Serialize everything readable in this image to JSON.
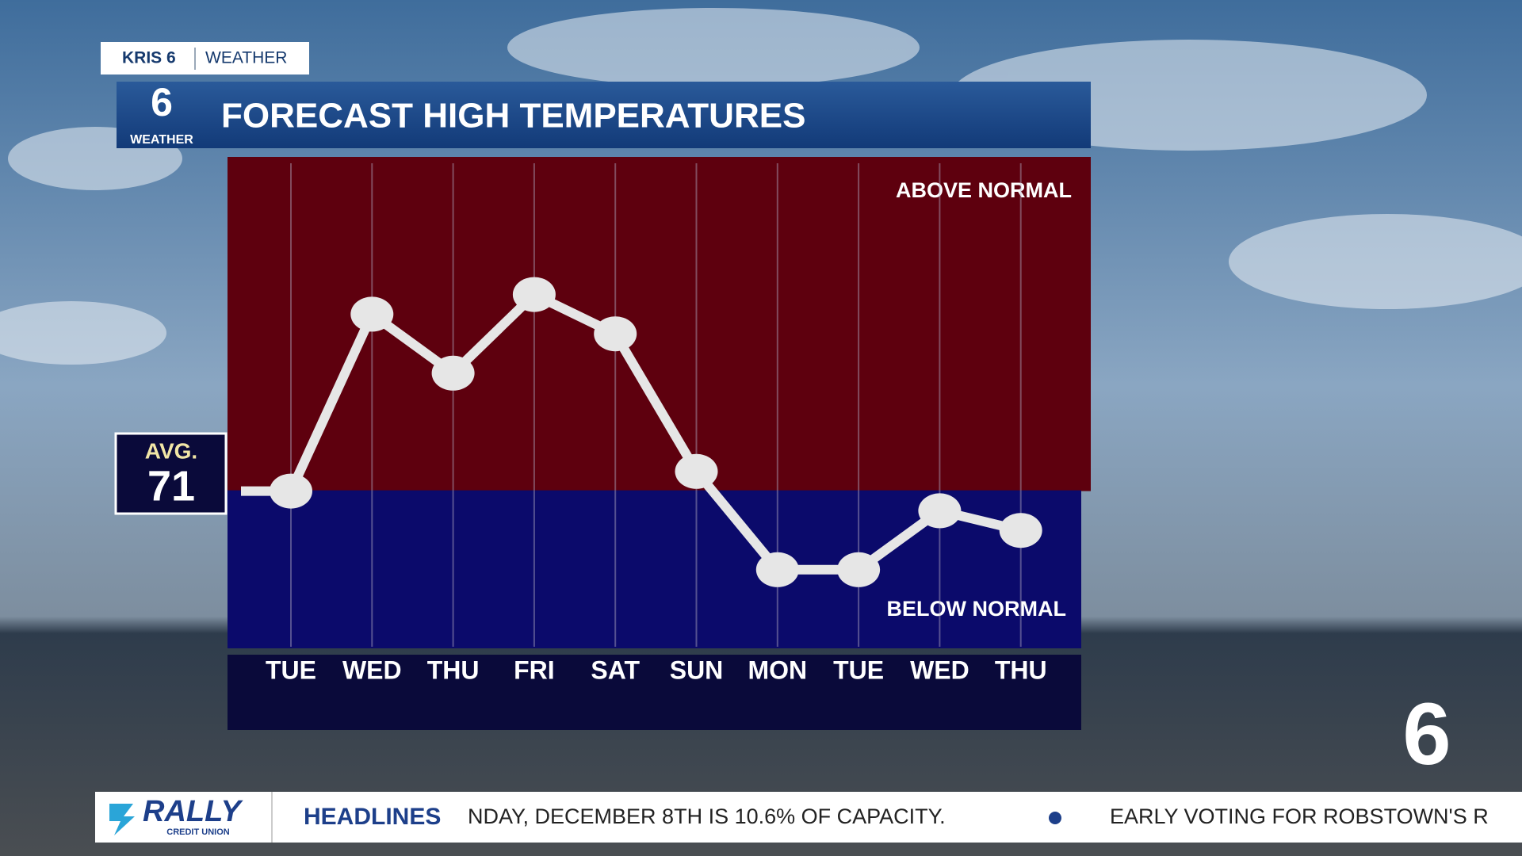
{
  "header": {
    "station": "KRIS 6",
    "section": "WEATHER",
    "logo_number": "6",
    "logo_label": "WEATHER"
  },
  "chart_data": {
    "type": "line",
    "title": "FORECAST HIGH TEMPERATURES",
    "categories": [
      "TUE",
      "WED",
      "THU",
      "FRI",
      "SAT",
      "SUN",
      "MON",
      "TUE",
      "WED",
      "THU"
    ],
    "values": [
      71,
      80,
      77,
      81,
      79,
      72,
      67,
      67,
      70,
      69
    ],
    "color": "#e6e6e6",
    "ylim": [
      63,
      88
    ],
    "average_label": "AVG.",
    "average": 71,
    "above_label": "ABOVE NORMAL",
    "below_label": "BELOW NORMAL",
    "above_color": "#5e000e",
    "below_color": "#0b0a6b"
  },
  "ticker": {
    "sponsor": "RALLY",
    "sponsor_sub": "CREDIT UNION",
    "label": "HEADLINES",
    "items": [
      "NDAY, DECEMBER 8TH IS 10.6% OF CAPACITY.",
      "EARLY VOTING FOR ROBSTOWN'S R"
    ]
  },
  "corner_logo": "6"
}
